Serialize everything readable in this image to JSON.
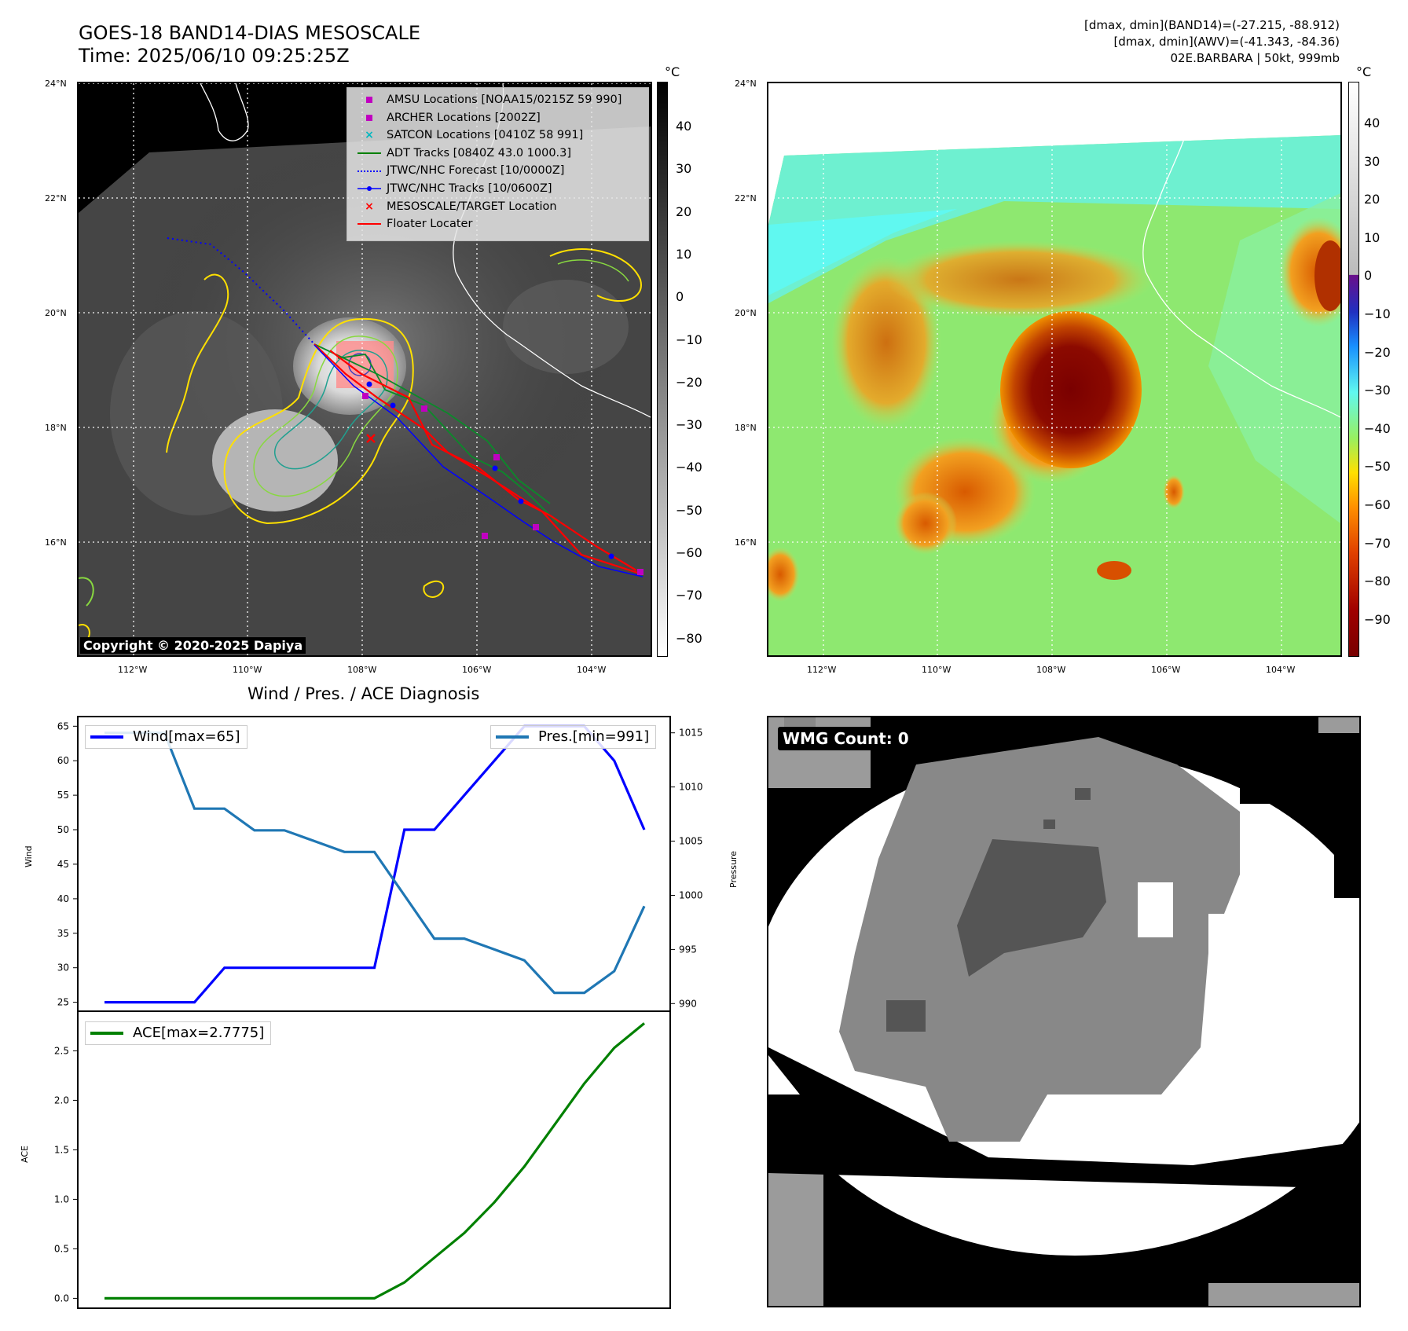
{
  "header": {
    "title_line1": "GOES-18 BAND14-DIAS MESOSCALE",
    "title_line2": "Time: 2025/06/10 09:25:25Z",
    "info_line1": "[dmax, dmin](BAND14)=(-27.215, -88.912)",
    "info_line2": "[dmax, dmin](AWV)=(-41.343, -84.36)",
    "info_line3": "02E.BARBARA | 50kt, 999mb"
  },
  "map_axes": {
    "lat_ticks": [
      "24°N",
      "22°N",
      "20°N",
      "18°N",
      "16°N"
    ],
    "lon_ticks": [
      "112°W",
      "110°W",
      "108°W",
      "106°W",
      "104°W"
    ]
  },
  "ir_panel": {
    "colorbar_unit": "°C",
    "colorbar_ticks": [
      "40",
      "30",
      "20",
      "10",
      "0",
      "−10",
      "−20",
      "−30",
      "−40",
      "−50",
      "−60",
      "−70",
      "−80"
    ],
    "copyright": "Copyright © 2020-2025 Dapiya",
    "legend": [
      {
        "label": "AMSU Locations [NOAA15/0215Z 59 990]",
        "symbol": "square",
        "color": "#c000c0"
      },
      {
        "label": "ARCHER Locations [2002Z]",
        "symbol": "square",
        "color": "#c000c0"
      },
      {
        "label": "SATCON Locations [0410Z 58 991]",
        "symbol": "x",
        "color": "#00b8c0"
      },
      {
        "label": "ADT Tracks [0840Z 43.0 1000.3]",
        "symbol": "line",
        "color": "#008000"
      },
      {
        "label": "JTWC/NHC Forecast [10/0000Z]",
        "symbol": "dotted",
        "color": "#0000ff"
      },
      {
        "label": "JTWC/NHC Tracks [10/0600Z]",
        "symbol": "line-dot",
        "color": "#0000ff"
      },
      {
        "label": "MESOSCALE/TARGET Location",
        "symbol": "x",
        "color": "#ff0000"
      },
      {
        "label": "Floater Locater",
        "symbol": "line",
        "color": "#ff0000"
      }
    ]
  },
  "awv_panel": {
    "colorbar_unit": "°C",
    "colorbar_ticks": [
      "40",
      "30",
      "20",
      "10",
      "0",
      "−10",
      "−20",
      "−30",
      "−40",
      "−50",
      "−60",
      "−70",
      "−80",
      "−90"
    ]
  },
  "diagnosis": {
    "title": "Wind / Pres. / ACE Diagnosis",
    "wind_ylabel": "Wind",
    "pres_ylabel": "Pressure",
    "ace_ylabel": "ACE",
    "wind_legend": "Wind[max=65]",
    "pres_legend": "Pres.[min=991]",
    "ace_legend": "ACE[max=2.7775]",
    "wind_ticks": [
      "65",
      "60",
      "55",
      "50",
      "45",
      "40",
      "35",
      "30",
      "25"
    ],
    "pres_ticks": [
      "1015",
      "1010",
      "1005",
      "1000",
      "995",
      "990"
    ],
    "ace_ticks": [
      "2.5",
      "2.0",
      "1.5",
      "1.0",
      "0.5",
      "0.0"
    ],
    "colors": {
      "wind": "#0000ff",
      "pressure": "#1f77b4",
      "ace": "#008000"
    }
  },
  "chart_data": [
    {
      "type": "line",
      "title": "Wind / Pres. / ACE Diagnosis",
      "ylabel": "Wind",
      "ylim": [
        24,
        66
      ],
      "series": [
        {
          "name": "Wind[max=65]",
          "values": [
            25,
            25,
            25,
            25,
            30,
            30,
            30,
            30,
            30,
            30,
            50,
            50,
            55,
            60,
            65,
            65,
            65,
            60,
            50
          ]
        }
      ]
    },
    {
      "type": "line",
      "ylabel": "Pressure",
      "ylim": [
        990,
        1015
      ],
      "series": [
        {
          "name": "Pres.[min=991]",
          "values": [
            1015,
            1015,
            1015,
            1008,
            1008,
            1006,
            1006,
            1005,
            1004,
            1004,
            1000,
            996,
            996,
            995,
            994,
            991,
            991,
            993,
            999
          ]
        }
      ]
    },
    {
      "type": "line",
      "ylabel": "ACE",
      "ylim": [
        -0.08,
        2.9
      ],
      "series": [
        {
          "name": "ACE[max=2.7775]",
          "values": [
            0,
            0,
            0,
            0,
            0,
            0,
            0,
            0,
            0,
            0,
            0.16,
            0.41,
            0.66,
            0.97,
            1.33,
            1.75,
            2.17,
            2.53,
            2.7775
          ]
        }
      ]
    }
  ],
  "wmg_panel": {
    "count_label": "WMG Count: 0"
  }
}
